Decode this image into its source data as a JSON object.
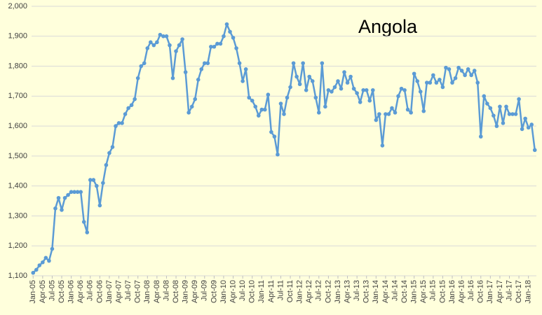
{
  "chart_data": {
    "type": "line",
    "title": "Angola",
    "categories": [
      "Jan-05",
      null,
      null,
      "Apr-05",
      null,
      null,
      "Jul-05",
      null,
      null,
      "Oct-05",
      null,
      null,
      "Jan-06",
      null,
      null,
      "Apr-06",
      null,
      null,
      "Jul-06",
      null,
      null,
      "Oct-06",
      null,
      null,
      "Jan-07",
      null,
      null,
      "Apr-07",
      null,
      null,
      "Jul-07",
      null,
      null,
      "Oct-07",
      null,
      null,
      "Jan-08",
      null,
      null,
      "Apr-08",
      null,
      null,
      "Jul-08",
      null,
      null,
      "Oct-08",
      null,
      null,
      "Jan-09",
      null,
      null,
      "Apr-09",
      null,
      null,
      "Jul-09",
      null,
      null,
      "Oct-09",
      null,
      null,
      "Jan-10",
      null,
      null,
      "Apr-10",
      null,
      null,
      "Jul-10",
      null,
      null,
      "Oct-10",
      null,
      null,
      "Jan-11",
      null,
      null,
      "Apr-11",
      null,
      null,
      "Jul-11",
      null,
      null,
      "Oct-11",
      null,
      null,
      "Jan-12",
      null,
      null,
      "Apr-12",
      null,
      null,
      "Jul-12",
      null,
      null,
      "Oct-12",
      null,
      null,
      "Jan-13",
      null,
      null,
      "Apr-13",
      null,
      null,
      "Jul-13",
      null,
      null,
      "Oct-13",
      null,
      null,
      "Jan-14",
      null,
      null,
      "Apr-14",
      null,
      null,
      "Jul-14",
      null,
      null,
      "Oct-14",
      null,
      null,
      "Jan-15",
      null,
      null,
      "Apr-15",
      null,
      null,
      "Jul-15",
      null,
      null,
      "Oct-15",
      null,
      null,
      "Jan-16",
      null,
      null,
      "Apr-16",
      null,
      null,
      "Jul-16",
      null,
      null,
      "Oct-16",
      null,
      null,
      "Jan-17",
      null,
      null,
      "Apr-17",
      null,
      null,
      "Jul-17",
      null,
      null,
      "Oct-17",
      null,
      null,
      "Jan-18",
      null,
      null
    ],
    "series": [
      {
        "color": "#5b9bd5",
        "values": [
          1110,
          1120,
          1135,
          1145,
          1160,
          1150,
          1190,
          1325,
          1360,
          1320,
          1360,
          1370,
          1380,
          1380,
          1380,
          1380,
          1280,
          1245,
          1420,
          1420,
          1400,
          1335,
          1410,
          1470,
          1510,
          1530,
          1600,
          1610,
          1610,
          1640,
          1660,
          1670,
          1690,
          1760,
          1800,
          1810,
          1860,
          1880,
          1870,
          1880,
          1905,
          1900,
          1900,
          1870,
          1760,
          1850,
          1870,
          1890,
          1780,
          1645,
          1665,
          1690,
          1755,
          1790,
          1810,
          1810,
          1865,
          1865,
          1875,
          1875,
          1900,
          1940,
          1915,
          1895,
          1860,
          1810,
          1750,
          1790,
          1695,
          1685,
          1665,
          1635,
          1655,
          1655,
          1705,
          1580,
          1565,
          1505,
          1675,
          1640,
          1695,
          1730,
          1810,
          1765,
          1740,
          1810,
          1720,
          1765,
          1750,
          1695,
          1645,
          1810,
          1665,
          1720,
          1715,
          1730,
          1750,
          1725,
          1780,
          1745,
          1765,
          1725,
          1710,
          1680,
          1720,
          1720,
          1685,
          1720,
          1620,
          1640,
          1535,
          1640,
          1640,
          1660,
          1645,
          1700,
          1725,
          1720,
          1655,
          1645,
          1775,
          1750,
          1715,
          1650,
          1745,
          1745,
          1770,
          1745,
          1755,
          1730,
          1795,
          1790,
          1745,
          1760,
          1795,
          1785,
          1770,
          1790,
          1770,
          1785,
          1745,
          1565,
          1700,
          1675,
          1660,
          1635,
          1600,
          1665,
          1610,
          1665,
          1640,
          1640,
          1640,
          1690,
          1590,
          1625,
          1595,
          1605,
          1520
        ]
      }
    ],
    "ylim": [
      1100,
      2000
    ],
    "yticks": [
      {
        "value": 1100,
        "label": "1,100"
      },
      {
        "value": 1200,
        "label": "1,200"
      },
      {
        "value": 1300,
        "label": "1,300"
      },
      {
        "value": 1400,
        "label": "1,400"
      },
      {
        "value": 1500,
        "label": "1,500"
      },
      {
        "value": 1600,
        "label": "1,600"
      },
      {
        "value": 1700,
        "label": "1,700"
      },
      {
        "value": 1800,
        "label": "1,800"
      },
      {
        "value": 1900,
        "label": "1,900"
      },
      {
        "value": 2000,
        "label": "2,000"
      }
    ],
    "grid": true
  }
}
